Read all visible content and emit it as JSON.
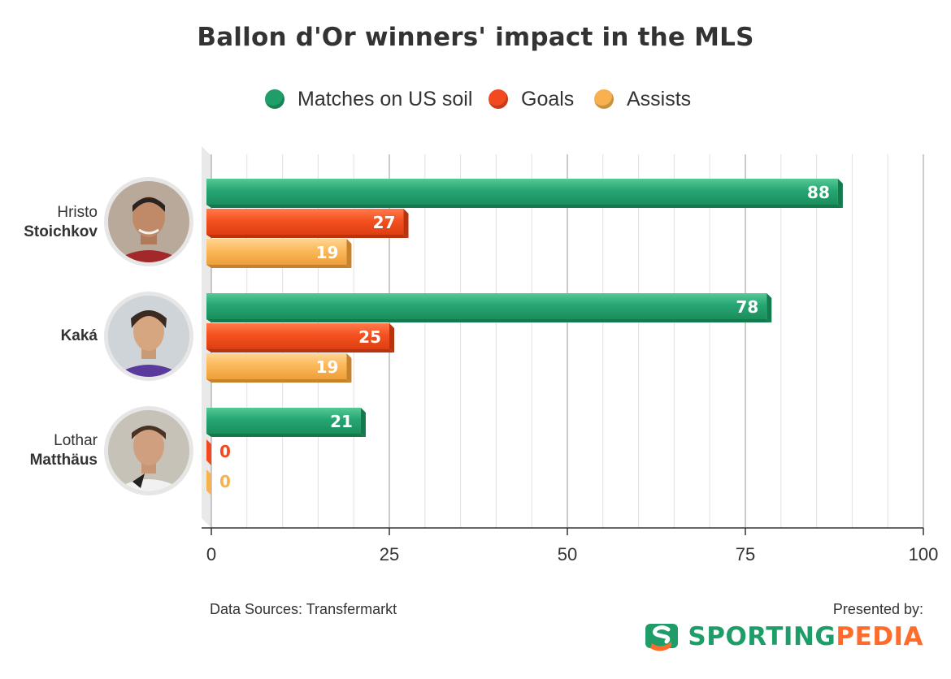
{
  "title": "Ballon d'Or winners' impact in the MLS",
  "legend": [
    {
      "label": "Matches on US soil",
      "color": "#1f9e6a"
    },
    {
      "label": "Goals",
      "color": "#f24a1e"
    },
    {
      "label": "Assists",
      "color": "#f8b14f"
    }
  ],
  "players": [
    {
      "first": "Hristo",
      "last": "Stoichkov"
    },
    {
      "first": "",
      "last": "Kaká"
    },
    {
      "first": "Lothar",
      "last": "Matthäus"
    }
  ],
  "chart_data": {
    "type": "bar",
    "orientation": "horizontal",
    "title": "Ballon d'Or winners' impact in the MLS",
    "categories": [
      "Hristo Stoichkov",
      "Kaká",
      "Lothar Matthäus"
    ],
    "series": [
      {
        "name": "Matches on US soil",
        "values": [
          88,
          78,
          21
        ],
        "color": "#1f9e6a"
      },
      {
        "name": "Goals",
        "values": [
          27,
          25,
          0
        ],
        "color": "#f24a1e"
      },
      {
        "name": "Assists",
        "values": [
          19,
          19,
          0
        ],
        "color": "#f8b14f"
      }
    ],
    "xlim": [
      0,
      100
    ],
    "xticks": [
      0,
      25,
      50,
      75,
      100
    ],
    "grid": true,
    "legend_position": "top"
  },
  "footer": {
    "source": "Data Sources: Transfermarkt",
    "presented": "Presented by:",
    "brand_part1": "SPORTING",
    "brand_part2": "PEDIA"
  }
}
